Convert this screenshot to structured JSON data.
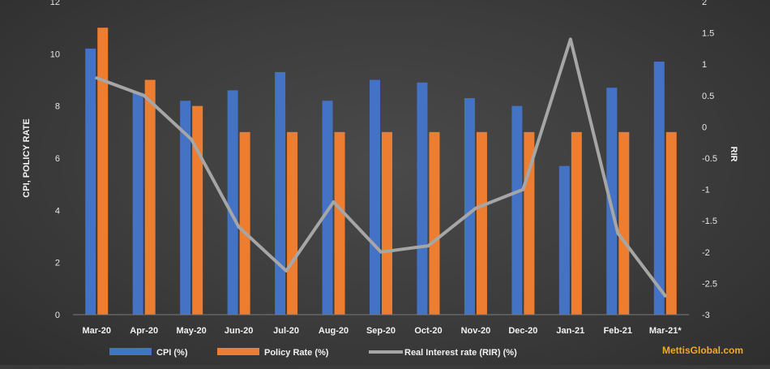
{
  "chart_data": {
    "type": "bar",
    "categories": [
      "Mar-20",
      "Apr-20",
      "May-20",
      "Jun-20",
      "Jul-20",
      "Aug-20",
      "Sep-20",
      "Oct-20",
      "Nov-20",
      "Dec-20",
      "Jan-21",
      "Feb-21",
      "Mar-21*"
    ],
    "series": [
      {
        "name": "CPI (%)",
        "type": "bar",
        "axis": "left",
        "color": "#4472c4",
        "values": [
          10.2,
          8.5,
          8.2,
          8.6,
          9.3,
          8.2,
          9.0,
          8.9,
          8.3,
          8.0,
          5.7,
          8.7,
          9.7
        ]
      },
      {
        "name": "Policy Rate (%)",
        "type": "bar",
        "axis": "left",
        "color": "#ed7d31",
        "values": [
          11.0,
          9.0,
          8.0,
          7.0,
          7.0,
          7.0,
          7.0,
          7.0,
          7.0,
          7.0,
          7.0,
          7.0,
          7.0
        ]
      },
      {
        "name": "Real Interest rate (RIR) (%)",
        "type": "line",
        "axis": "right",
        "color": "#a6a6a6",
        "values": [
          0.78,
          0.5,
          -0.2,
          -1.6,
          -2.3,
          -1.2,
          -2.0,
          -1.9,
          -1.3,
          -1.0,
          1.4,
          -1.7,
          -2.7
        ]
      }
    ],
    "ylabel": "CPI, POLICY RATE",
    "y2label": "RIR",
    "ylim": [
      0,
      12
    ],
    "yticks": [
      0,
      2,
      4,
      6,
      8,
      10,
      12
    ],
    "y2lim": [
      -3,
      2
    ],
    "y2ticks": [
      2,
      1.5,
      1,
      0.5,
      0,
      -0.5,
      -1,
      -1.5,
      -2,
      -2.5,
      -3
    ],
    "legend_position": "bottom",
    "grid": false
  },
  "watermark": "MettisGlobal.com"
}
